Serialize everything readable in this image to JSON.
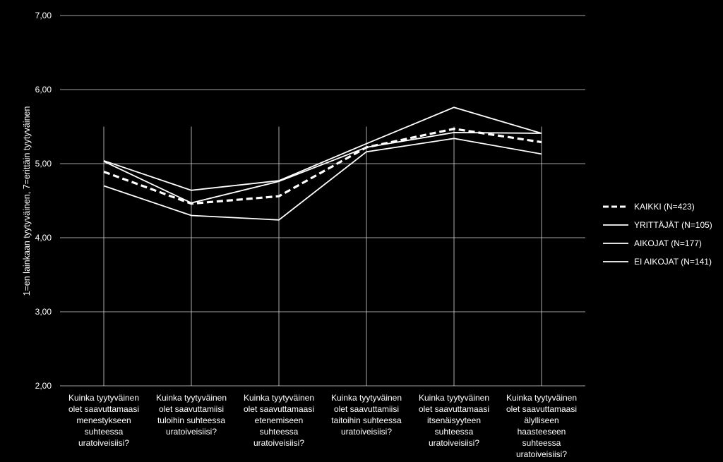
{
  "chart_data": {
    "type": "line",
    "title": "",
    "xlabel": "",
    "ylabel": "1=en lainkaan tyytyväinen, 7=erittäin tyytyväinen",
    "ylim": [
      2,
      7
    ],
    "yticks": [
      "2,00",
      "3,00",
      "4,00",
      "5,00",
      "6,00",
      "7,00"
    ],
    "grid": true,
    "legend_position": "right",
    "categories": [
      "Kuinka tyytyväinen olet saavuttamaasi menestykseen suhteessa uratoiveisiisi?",
      "Kuinka tyytyväinen olet saavuttamiisi tuloihin suhteessa uratoiveisiisi?",
      "Kuinka tyytyväinen olet saavuttamaasi etenemiseen suhteessa uratoiveisiisi?",
      "Kuinka tyytyväinen olet saavuttamiisi taitoihin suhteessa uratoiveisiisi?",
      "Kuinka tyytyväinen olet saavuttamaasi itsenäisyyteen suhteessa uratoiveisiisi?",
      "Kuinka tyytyväinen olet saavuttamaasi älylliseen haasteeseen suhteessa uratoiveisiisi?"
    ],
    "category_lines": [
      [
        "Kuinka tyytyväinen",
        "olet saavuttamaasi",
        "menestykseen",
        "suhteessa",
        "uratoiveisiisi?"
      ],
      [
        "Kuinka tyytyväinen",
        "olet saavuttamiisi",
        "tuloihin suhteessa",
        "uratoiveisiisi?"
      ],
      [
        "Kuinka tyytyväinen",
        "olet saavuttamaasi",
        "etenemiseen",
        "suhteessa",
        "uratoiveisiisi?"
      ],
      [
        "Kuinka tyytyväinen",
        "olet saavuttamiisi",
        "taitoihin suhteessa",
        "uratoiveisiisi?"
      ],
      [
        "Kuinka tyytyväinen",
        "olet saavuttamaasi",
        "itsenäisyyteen",
        "suhteessa",
        "uratoiveisiisi?"
      ],
      [
        "Kuinka tyytyväinen",
        "olet saavuttamaasi",
        "älylliseen haasteeseen",
        "suhteessa",
        "uratoiveisiisi?"
      ]
    ],
    "series": [
      {
        "name": "KAIKKI (N=423)",
        "values": [
          4.89,
          4.46,
          4.56,
          5.22,
          5.47,
          5.29
        ],
        "color": "#ffffff",
        "dashed": true
      },
      {
        "name": "YRITTÄJÄT (N=105)",
        "values": [
          5.04,
          4.64,
          4.77,
          5.27,
          5.76,
          5.41
        ],
        "color": "#ffffff",
        "dashed": false
      },
      {
        "name": "AIKOJAT (N=177)",
        "values": [
          5.03,
          4.47,
          4.76,
          5.22,
          5.42,
          5.41
        ],
        "color": "#ffffff",
        "dashed": false
      },
      {
        "name": "EI AIKOJAT (N=141)",
        "values": [
          4.7,
          4.3,
          4.24,
          5.16,
          5.34,
          5.13
        ],
        "color": "#ffffff",
        "dashed": false
      }
    ]
  }
}
